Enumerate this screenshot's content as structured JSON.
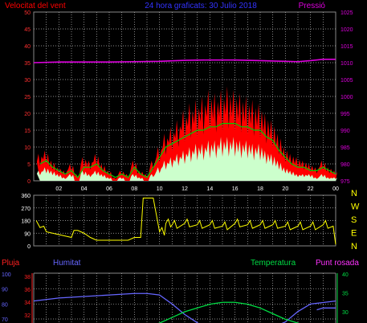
{
  "colors": {
    "background": "#000000",
    "grid": "#bbbbbb",
    "wind_gust": "#ff0000",
    "wind_avg": "#00cc00",
    "wind_min": "#ccffcc",
    "pressure": "#dd00dd",
    "title_blue": "#3333ff",
    "direction": "#ffff00",
    "rain": "#ff2020",
    "humidity": "#6666ff",
    "temperature": "#00dd44",
    "dewpoint": "#ff33ff",
    "axis_white": "#ffffff"
  },
  "chart_data": [
    {
      "type": "line",
      "title": "24 hora graficats: 30 Julio 2018",
      "left_title": "Velocitat del vent",
      "right_title": "Pressió",
      "x_tick_labels": [
        "02",
        "04",
        "06",
        "08",
        "10",
        "12",
        "14",
        "16",
        "18",
        "20",
        "22",
        "00"
      ],
      "y_left": {
        "ticks": [
          "0",
          "5",
          "10",
          "15",
          "20",
          "25",
          "30",
          "35",
          "40",
          "45",
          "50"
        ],
        "range": [
          0,
          50
        ]
      },
      "y_right": {
        "ticks": [
          "975",
          "980",
          "985",
          "990",
          "995",
          "1000",
          "1005",
          "1010",
          "1015",
          "1020",
          "1025"
        ],
        "range": [
          975,
          1025
        ]
      },
      "grid": true,
      "series": [
        {
          "key": "gust",
          "x": [
            0.5,
            1.0,
            1.5,
            2.0,
            2.5,
            3.0,
            3.5,
            4.0,
            4.5,
            5.0,
            5.5,
            6.0,
            6.5,
            7.0,
            7.5,
            8.0,
            8.5,
            9.0,
            9.5,
            10.0,
            10.5,
            11.0,
            11.5,
            12.0,
            12.5,
            13.0,
            13.5,
            14.0,
            14.5,
            15.0,
            15.5,
            16.0,
            16.5,
            17.0,
            17.5,
            18.0,
            18.5,
            19.0,
            19.5,
            20.0,
            20.5,
            21.0,
            21.5,
            22.0,
            22.5,
            23.0,
            23.5,
            24.0
          ],
          "values": [
            8,
            9,
            6,
            4,
            3,
            5,
            2,
            7,
            6,
            8,
            5,
            3,
            1,
            3,
            2,
            6,
            3,
            2,
            6,
            10,
            14,
            16,
            18,
            21,
            23,
            24,
            25,
            27,
            26,
            27,
            28,
            27,
            26,
            25,
            24,
            23,
            20,
            18,
            14,
            10,
            8,
            7,
            6,
            5,
            4,
            6,
            4,
            3
          ]
        },
        {
          "key": "avg",
          "x": [
            0.5,
            1.0,
            1.5,
            2.0,
            2.5,
            3.0,
            3.5,
            4.0,
            4.5,
            5.0,
            5.5,
            6.0,
            6.5,
            7.0,
            7.5,
            8.0,
            8.5,
            9.0,
            9.5,
            10.0,
            10.5,
            11.0,
            11.5,
            12.0,
            12.5,
            13.0,
            13.5,
            14.0,
            14.5,
            15.0,
            15.5,
            16.0,
            16.5,
            17.0,
            17.5,
            18.0,
            18.5,
            19.0,
            19.5,
            20.0,
            20.5,
            21.0,
            21.5,
            22.0,
            22.5,
            23.0,
            23.5,
            24.0
          ],
          "values": [
            5,
            6,
            4,
            3,
            2,
            3,
            1,
            4,
            4,
            5,
            3,
            2,
            1,
            2,
            1,
            4,
            2,
            1,
            4,
            7,
            10,
            11,
            12,
            13,
            14,
            15,
            15,
            16,
            16,
            17,
            17,
            17,
            16,
            16,
            15,
            15,
            13,
            12,
            9,
            7,
            5,
            4,
            4,
            3,
            3,
            4,
            3,
            2
          ]
        },
        {
          "key": "min",
          "x": [
            0.5,
            1.0,
            1.5,
            2.0,
            2.5,
            3.0,
            3.5,
            4.0,
            4.5,
            5.0,
            5.5,
            6.0,
            6.5,
            7.0,
            7.5,
            8.0,
            8.5,
            9.0,
            9.5,
            10.0,
            10.5,
            11.0,
            11.5,
            12.0,
            12.5,
            13.0,
            13.5,
            14.0,
            14.5,
            15.0,
            15.5,
            16.0,
            16.5,
            17.0,
            17.5,
            18.0,
            18.5,
            19.0,
            19.5,
            20.0,
            20.5,
            21.0,
            21.5,
            22.0,
            22.5,
            23.0,
            23.5,
            24.0
          ],
          "values": [
            3,
            4,
            3,
            2,
            1,
            2,
            0,
            3,
            2,
            3,
            2,
            1,
            0,
            1,
            0,
            2,
            1,
            0,
            2,
            4,
            6,
            7,
            8,
            9,
            10,
            11,
            11,
            12,
            12,
            13,
            13,
            13,
            12,
            12,
            11,
            11,
            9,
            8,
            6,
            4,
            3,
            2,
            2,
            2,
            1,
            2,
            1,
            1
          ]
        },
        {
          "key": "pressure",
          "axis": "right",
          "x": [
            0,
            2,
            4,
            6,
            8,
            10,
            12,
            14,
            16,
            18,
            19,
            20,
            21,
            22,
            23,
            24
          ],
          "values": [
            1010,
            1010.2,
            1010.2,
            1010.2,
            1010.3,
            1010.4,
            1010.7,
            1010.8,
            1010.8,
            1010.6,
            1010.5,
            1010.4,
            1010.3,
            1010.6,
            1011,
            1011
          ]
        }
      ]
    },
    {
      "type": "line",
      "left_ticks": [
        "360",
        "270",
        "180",
        "90",
        "0"
      ],
      "range": [
        0,
        360
      ],
      "compass": [
        "N",
        "W",
        "S",
        "E",
        "N"
      ],
      "grid": true,
      "series": [
        {
          "key": "direction",
          "x": [
            0.2,
            0.5,
            0.8,
            1.0,
            1.5,
            2.0,
            2.5,
            3.0,
            3.2,
            3.5,
            4.0,
            4.5,
            5.0,
            5.5,
            6.0,
            6.5,
            7.0,
            7.5,
            8.0,
            8.5,
            8.7,
            9.5,
            10.0,
            10.5,
            11,
            12,
            13,
            14,
            15,
            16,
            17,
            18,
            19,
            20,
            21,
            22,
            23,
            23.8,
            24.0
          ],
          "values": [
            180,
            130,
            140,
            100,
            90,
            80,
            70,
            60,
            110,
            110,
            90,
            60,
            40,
            40,
            40,
            40,
            40,
            40,
            60,
            60,
            340,
            340,
            100,
            160,
            150,
            160,
            150,
            150,
            140,
            160,
            150,
            150,
            150,
            140,
            140,
            140,
            150,
            140,
            10
          ]
        }
      ]
    },
    {
      "type": "line",
      "left_labels": [
        "Pluja",
        "Humitat"
      ],
      "right_labels": [
        "Temperatura",
        "Punt rosada"
      ],
      "humidity_ticks": [
        "100",
        "90",
        "80",
        "70"
      ],
      "rain_ticks": [
        "38",
        "36",
        "34",
        "32"
      ],
      "temp_ticks": [
        "40",
        "35",
        "30"
      ],
      "grid": true,
      "series": [
        {
          "key": "humidity",
          "x": [
            0,
            2,
            4,
            6,
            8,
            9,
            10,
            11,
            12,
            14,
            16,
            18,
            20,
            21,
            22,
            23,
            24
          ],
          "values": [
            82,
            84,
            85,
            86,
            87,
            87,
            86,
            80,
            73,
            62,
            58,
            61,
            68,
            75,
            80,
            81,
            82
          ]
        },
        {
          "key": "temperature",
          "x": [
            0,
            6,
            8,
            9,
            10,
            11,
            12,
            13,
            14,
            15,
            16,
            17,
            18,
            19,
            20,
            21,
            22,
            22.5
          ],
          "values": [
            25,
            25,
            25,
            26,
            27,
            28.5,
            30,
            31,
            32,
            32.5,
            32.5,
            32,
            31,
            29.5,
            28,
            27,
            26,
            26
          ]
        },
        {
          "key": "dewpoint",
          "x": [
            22.5,
            23,
            23.5,
            24
          ],
          "values": [
            30.5,
            31,
            31,
            31
          ]
        }
      ]
    }
  ]
}
